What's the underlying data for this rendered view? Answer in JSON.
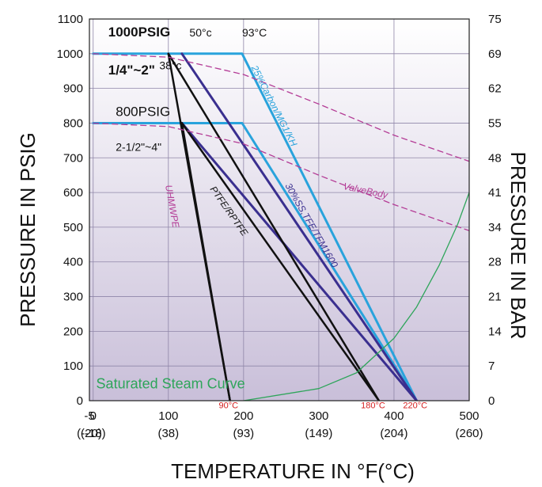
{
  "chart_data": {
    "type": "line",
    "xlabel": "TEMPERATURE IN °F(°C)",
    "ylabel": "PRESSURE IN PSIG",
    "y2label": "PRESSURE IN BAR",
    "xlim": [
      -5,
      500
    ],
    "ylim": [
      0,
      1100
    ],
    "x_ticks": [
      {
        "value": -5,
        "f": "-5",
        "c": "(-20)"
      },
      {
        "value": 0,
        "f": "0",
        "c": "(-18)"
      },
      {
        "value": 100,
        "f": "100",
        "c": "(38)"
      },
      {
        "value": 200,
        "f": "200",
        "c": "(93)"
      },
      {
        "value": 300,
        "f": "300",
        "c": "(149)"
      },
      {
        "value": 400,
        "f": "400",
        "c": "(204)"
      },
      {
        "value": 500,
        "f": "500",
        "c": "(260)"
      }
    ],
    "y_ticks": [
      0,
      100,
      200,
      300,
      400,
      500,
      600,
      700,
      800,
      900,
      1000,
      1100
    ],
    "y2_ticks": [
      {
        "psi": 0,
        "label": "0"
      },
      {
        "psi": 100,
        "label": "7"
      },
      {
        "psi": 200,
        "label": "14"
      },
      {
        "psi": 300,
        "label": "21"
      },
      {
        "psi": 400,
        "label": "28"
      },
      {
        "psi": 500,
        "label": "34"
      },
      {
        "psi": 600,
        "label": "41"
      },
      {
        "psi": 700,
        "label": "48"
      },
      {
        "psi": 800,
        "label": "55"
      },
      {
        "psi": 900,
        "label": "62"
      },
      {
        "psi": 1000,
        "label": "69"
      },
      {
        "psi": 1100,
        "label": "75"
      }
    ],
    "grid": true,
    "series": [
      {
        "name": "25%Carbon/MG1/KH",
        "color": "#29a3dc",
        "width": 3,
        "points": [
          [
            0,
            1000
          ],
          [
            198,
            1000
          ],
          [
            430,
            0
          ]
        ]
      },
      {
        "name": "",
        "color": "#29a3dc",
        "width": 3,
        "points": [
          [
            0,
            800
          ],
          [
            198,
            800
          ],
          [
            430,
            0
          ]
        ]
      },
      {
        "name": "30%SS,TFE/TFM1600",
        "color": "#3a2f8f",
        "width": 3,
        "points": [
          [
            118,
            1000
          ],
          [
            430,
            0
          ]
        ]
      },
      {
        "name": "",
        "color": "#3a2f8f",
        "width": 3,
        "points": [
          [
            118,
            800
          ],
          [
            430,
            0
          ]
        ]
      },
      {
        "name": "PTFE/RPTFE",
        "color": "#111111",
        "width": 2.5,
        "points": [
          [
            100,
            1000
          ],
          [
            380,
            0
          ]
        ]
      },
      {
        "name": "",
        "color": "#111111",
        "width": 2.5,
        "points": [
          [
            118,
            800
          ],
          [
            380,
            0
          ]
        ]
      },
      {
        "name": "UHMWPE",
        "color": "#111111",
        "width": 2.5,
        "points": [
          [
            100,
            1000
          ],
          [
            182,
            0
          ]
        ]
      },
      {
        "name": "",
        "color": "#111111",
        "width": 2.5,
        "points": [
          [
            118,
            800
          ],
          [
            182,
            0
          ]
        ]
      },
      {
        "name": "ValveBody",
        "color": "#b43c96",
        "width": 1.3,
        "dashed": true,
        "points": [
          [
            0,
            1000
          ],
          [
            100,
            990
          ],
          [
            200,
            940
          ],
          [
            300,
            855
          ],
          [
            400,
            765
          ],
          [
            500,
            690
          ]
        ]
      },
      {
        "name": "",
        "color": "#b43c96",
        "width": 1.3,
        "dashed": true,
        "points": [
          [
            0,
            800
          ],
          [
            100,
            790
          ],
          [
            200,
            740
          ],
          [
            300,
            650
          ],
          [
            400,
            565
          ],
          [
            500,
            490
          ]
        ]
      },
      {
        "name": "Saturated Steam Curve",
        "color": "#2ea55a",
        "width": 1.3,
        "points": [
          [
            200,
            0
          ],
          [
            300,
            35
          ],
          [
            350,
            80
          ],
          [
            400,
            180
          ],
          [
            430,
            270
          ],
          [
            460,
            390
          ],
          [
            485,
            510
          ],
          [
            500,
            600
          ]
        ]
      }
    ],
    "annotations": [
      {
        "text": "1000PSIG",
        "x": 20,
        "y": 1050,
        "size": 17,
        "color": "#111111",
        "weight": "bold"
      },
      {
        "text": "1/4\"~2\"",
        "x": 20,
        "y": 940,
        "size": 17,
        "color": "#111111",
        "weight": "bold"
      },
      {
        "text": "38°c",
        "x": 88,
        "y": 955,
        "size": 14,
        "color": "#111111",
        "weight": "normal"
      },
      {
        "text": "50°c",
        "x": 128,
        "y": 1050,
        "size": 14,
        "color": "#111111",
        "weight": "normal"
      },
      {
        "text": "93°C",
        "x": 198,
        "y": 1050,
        "size": 14,
        "color": "#111111",
        "weight": "normal"
      },
      {
        "text": "800PSIG",
        "x": 30,
        "y": 820,
        "size": 17,
        "color": "#111111",
        "weight": "normal"
      },
      {
        "text": "2-1/2\"~4\"",
        "x": 30,
        "y": 720,
        "size": 14,
        "color": "#111111",
        "weight": "normal"
      },
      {
        "text": "Saturated Steam Curve",
        "x": 4,
        "y": 35,
        "size": 18,
        "color": "#2ea55a",
        "weight": "normal"
      },
      {
        "text": "90°C",
        "x": 167,
        "y": -22,
        "size": 11,
        "color": "#d42020",
        "weight": "normal"
      },
      {
        "text": "180°C",
        "x": 356,
        "y": -22,
        "size": 11,
        "color": "#d42020",
        "weight": "normal"
      },
      {
        "text": "220°C",
        "x": 412,
        "y": -22,
        "size": 11,
        "color": "#d42020",
        "weight": "normal"
      }
    ],
    "rotated_labels": [
      {
        "text": "25%Carbon/MG1/KH",
        "x": 210,
        "y": 960,
        "angle": 63,
        "size": 12,
        "color": "#29a3dc"
      },
      {
        "text": "30%SS,TFE/TFM1600",
        "x": 255,
        "y": 620,
        "angle": 60,
        "size": 12,
        "color": "#3a2f8f"
      },
      {
        "text": "PTFE/RPTFE",
        "x": 155,
        "y": 610,
        "angle": 55,
        "size": 12,
        "color": "#111111"
      },
      {
        "text": "UHMWPE",
        "x": 96,
        "y": 620,
        "angle": 80,
        "size": 12,
        "color": "#b43c96"
      },
      {
        "text": "ValveBody",
        "x": 332,
        "y": 610,
        "angle": 12,
        "size": 12,
        "color": "#b43c96"
      }
    ]
  }
}
